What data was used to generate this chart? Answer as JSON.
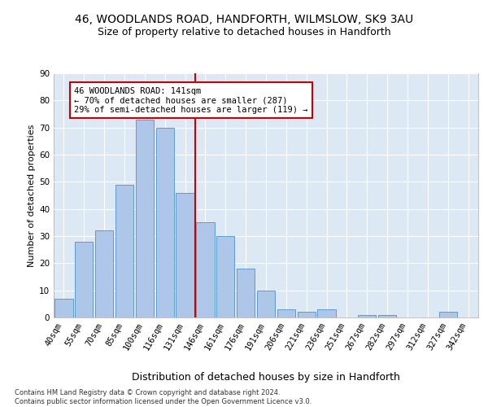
{
  "title1": "46, WOODLANDS ROAD, HANDFORTH, WILMSLOW, SK9 3AU",
  "title2": "Size of property relative to detached houses in Handforth",
  "xlabel": "Distribution of detached houses by size in Handforth",
  "ylabel": "Number of detached properties",
  "footnote": "Contains HM Land Registry data © Crown copyright and database right 2024.\nContains public sector information licensed under the Open Government Licence v3.0.",
  "bar_labels": [
    "40sqm",
    "55sqm",
    "70sqm",
    "85sqm",
    "100sqm",
    "116sqm",
    "131sqm",
    "146sqm",
    "161sqm",
    "176sqm",
    "191sqm",
    "206sqm",
    "221sqm",
    "236sqm",
    "251sqm",
    "267sqm",
    "282sqm",
    "297sqm",
    "312sqm",
    "327sqm",
    "342sqm"
  ],
  "bar_values": [
    7,
    28,
    32,
    49,
    73,
    70,
    46,
    35,
    30,
    18,
    10,
    3,
    2,
    3,
    0,
    1,
    1,
    0,
    0,
    2,
    0
  ],
  "bar_color": "#aec6e8",
  "bar_edge_color": "#5b9bd5",
  "vline_x": 6.5,
  "vline_color": "#cc0000",
  "annotation_text": "46 WOODLANDS ROAD: 141sqm\n← 70% of detached houses are smaller (287)\n29% of semi-detached houses are larger (119) →",
  "annotation_box_color": "#ffffff",
  "annotation_box_edge_color": "#cc0000",
  "ylim": [
    0,
    90
  ],
  "yticks": [
    0,
    10,
    20,
    30,
    40,
    50,
    60,
    70,
    80,
    90
  ],
  "background_color": "#dce9f5",
  "grid_color": "#ffffff",
  "title1_fontsize": 10,
  "title2_fontsize": 9,
  "xlabel_fontsize": 9,
  "ylabel_fontsize": 8,
  "tick_fontsize": 7.5,
  "annotation_fontsize": 7.5,
  "footnote_fontsize": 6
}
